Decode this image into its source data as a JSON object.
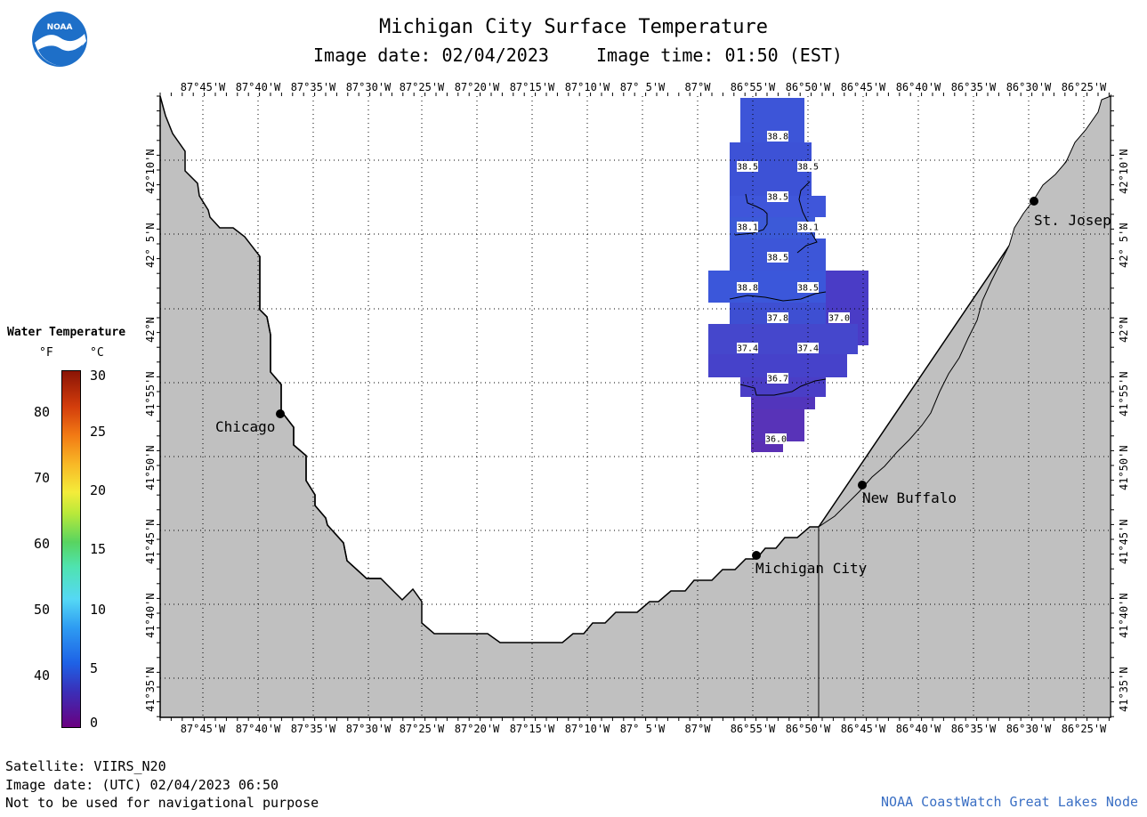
{
  "header": {
    "title": "Michigan City Surface Temperature",
    "image_date": "Image date: 02/04/2023",
    "image_time": "Image time: 01:50 (EST)"
  },
  "legend": {
    "title": "Water Temperature",
    "unit_f": "°F",
    "unit_c": "°C",
    "f_ticks": [
      "80",
      "70",
      "60",
      "50",
      "40"
    ],
    "c_ticks": [
      "30",
      "25",
      "20",
      "15",
      "10",
      "5",
      "0"
    ]
  },
  "axes": {
    "lon_top": [
      "87°45'W",
      "87°40'W",
      "87°35'W",
      "87°30'W",
      "87°25'W",
      "87°20'W",
      "87°15'W",
      "87°10'W",
      "87° 5'W",
      "87°W",
      "86°55'W",
      "86°50'W",
      "86°45'W",
      "86°40'W",
      "86°35'W",
      "86°30'W",
      "86°25'W"
    ],
    "lon_bottom": [
      "87°45'W",
      "87°40'W",
      "87°35'W",
      "87°30'W",
      "87°25'W",
      "87°20'W",
      "87°15'W",
      "87°10'W",
      "87° 5'W",
      "87°W",
      "86°55'W",
      "86°50'W",
      "86°45'W",
      "86°40'W",
      "86°35'W",
      "86°30'W",
      "86°25'W"
    ],
    "lat_left": [
      "42°10'N",
      "42° 5'N",
      "42°N",
      "41°55'N",
      "41°50'N",
      "41°45'N",
      "41°40'N",
      "41°35'N"
    ],
    "lat_right": [
      "42°10'N",
      "42° 5'N",
      "42°N",
      "41°55'N",
      "41°50'N",
      "41°45'N",
      "41°40'N",
      "41°35'N"
    ]
  },
  "cities": [
    {
      "name": "Chicago"
    },
    {
      "name": "St. Josep"
    },
    {
      "name": "New Buffalo"
    },
    {
      "name": "Michigan City"
    }
  ],
  "temperature_labels": [
    "38.8",
    "38.5",
    "38.5",
    "38.5",
    "38.1",
    "38.1",
    "38.5",
    "38.8",
    "38.5",
    "37.8",
    "37.0",
    "37.4",
    "37.4",
    "36.7",
    "36.0"
  ],
  "footer": {
    "satellite": "Satellite: VIIRS_N20",
    "utc_date": "Image date: (UTC) 02/04/2023  06:50",
    "disclaimer": "Not to be used for navigational purpose",
    "credit": "NOAA CoastWatch Great Lakes Node"
  },
  "colors": {
    "land": "#c0c0c0",
    "water": "#ffffff",
    "temp_cold": "#4a2fc0",
    "temp_warm": "#3a5ae0",
    "credit_text": "#3a6fc4"
  }
}
